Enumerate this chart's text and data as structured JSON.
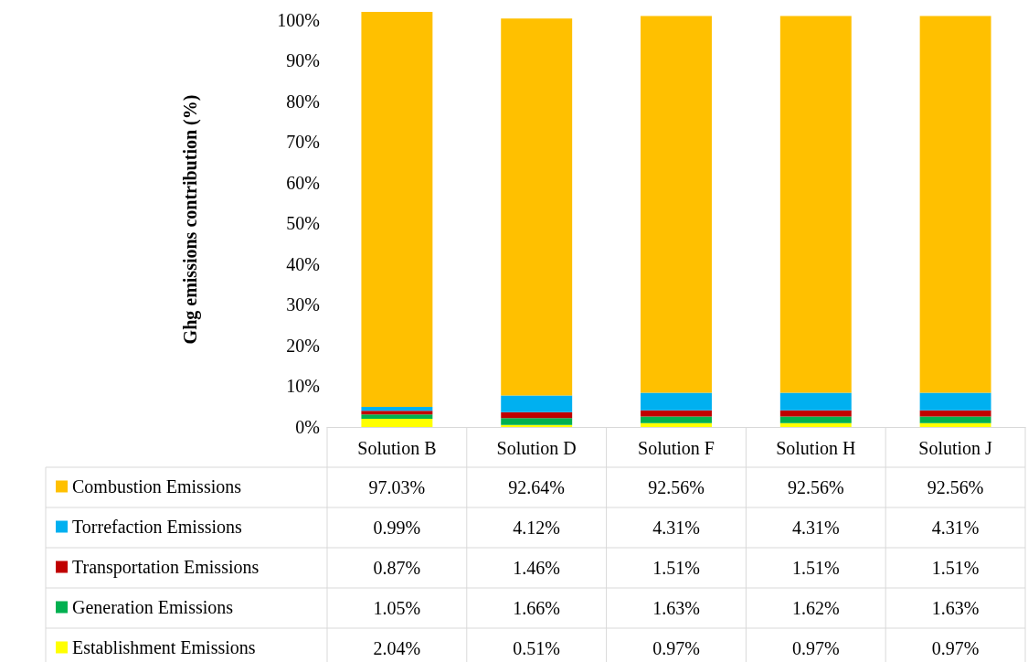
{
  "chart_data": {
    "type": "bar",
    "ylabel": "Ghg emissions contribution (%)",
    "categories": [
      "Solution B",
      "Solution D",
      "Solution F",
      "Solution H",
      "Solution J"
    ],
    "stacked": true,
    "ylim": [
      0,
      102
    ],
    "yticks": [
      {
        "value": 0,
        "label": "0%"
      },
      {
        "value": 10,
        "label": "10%"
      },
      {
        "value": 20,
        "label": "20%"
      },
      {
        "value": 30,
        "label": "30%"
      },
      {
        "value": 40,
        "label": "40%"
      },
      {
        "value": 50,
        "label": "50%"
      },
      {
        "value": 60,
        "label": "60%"
      },
      {
        "value": 70,
        "label": "70%"
      },
      {
        "value": 80,
        "label": "80%"
      },
      {
        "value": 90,
        "label": "90%"
      },
      {
        "value": 100,
        "label": "100%"
      }
    ],
    "grid": false,
    "legend": "bottom left",
    "series": [
      {
        "name": "Establishment Emissions",
        "color": "#ffff00",
        "values": [
          2.04,
          0.51,
          0.97,
          0.97,
          0.97
        ],
        "value_labels": [
          "2.04%",
          "0.51%",
          "0.97%",
          "0.97%",
          "0.97%"
        ]
      },
      {
        "name": "Generation Emissions",
        "color": "#00b050",
        "values": [
          1.05,
          1.66,
          1.63,
          1.62,
          1.63
        ],
        "value_labels": [
          "1.05%",
          "1.66%",
          "1.63%",
          "1.62%",
          "1.63%"
        ]
      },
      {
        "name": "Transportation Emissions",
        "color": "#c00000",
        "values": [
          0.87,
          1.46,
          1.51,
          1.51,
          1.51
        ],
        "value_labels": [
          "0.87%",
          "1.46%",
          "1.51%",
          "1.51%",
          "1.51%"
        ]
      },
      {
        "name": "Torrefaction Emissions",
        "color": "#00b0f0",
        "values": [
          0.99,
          4.12,
          4.31,
          4.31,
          4.31
        ],
        "value_labels": [
          "0.99%",
          "4.12%",
          "4.31%",
          "4.31%",
          "4.31%"
        ]
      },
      {
        "name": "Combustion Emissions",
        "color": "#ffc000",
        "values": [
          97.03,
          92.64,
          92.56,
          92.56,
          92.56
        ],
        "value_labels": [
          "97.03%",
          "92.64%",
          "92.56%",
          "92.56%",
          "92.56%"
        ]
      }
    ]
  }
}
